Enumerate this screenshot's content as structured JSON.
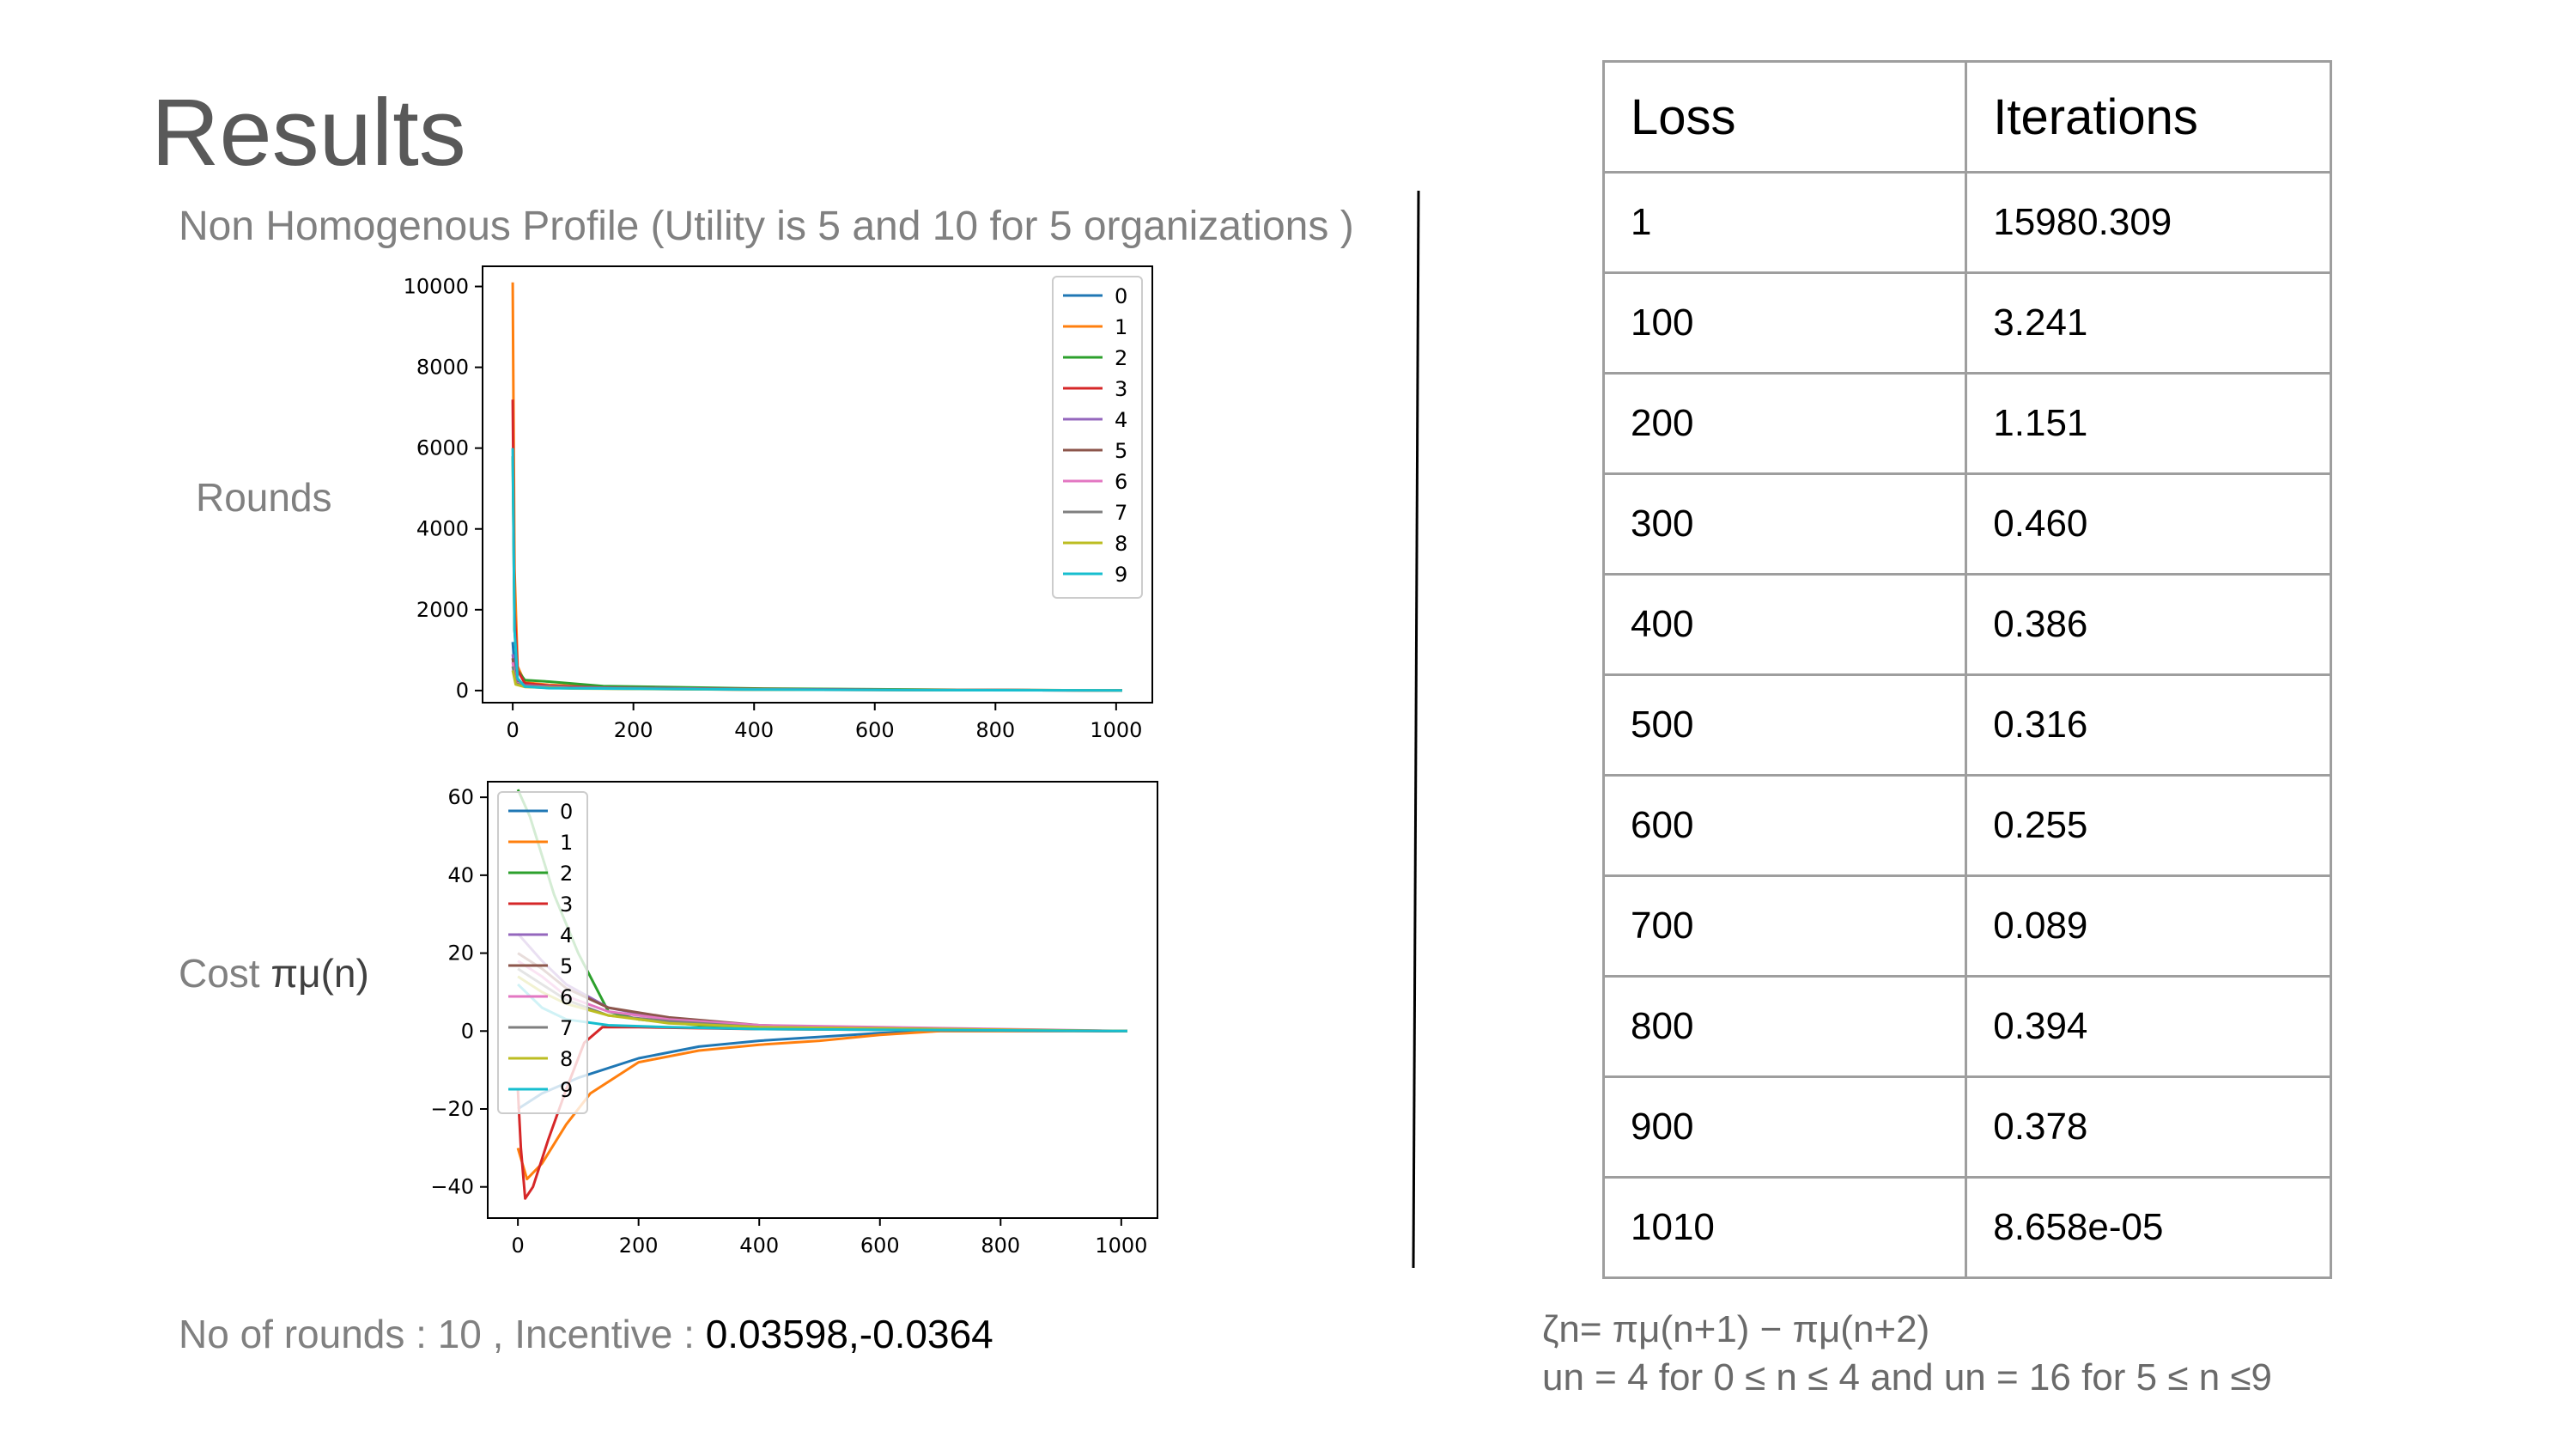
{
  "slide": {
    "title": "Results",
    "subtitle": "Non Homogenous Profile (Utility is 5 and 10 for 5 organizations )",
    "rounds_label": "Rounds",
    "cost_label_prefix": "Cost ",
    "cost_label_symbol": "πμ(n)",
    "footer_prefix": "No of rounds : 10 , Incentive : ",
    "footer_value": "0.03598,-0.0364"
  },
  "table": {
    "headers": [
      "Loss",
      "Iterations"
    ],
    "rows": [
      [
        "1",
        "15980.309"
      ],
      [
        "100",
        "3.241"
      ],
      [
        "200",
        "1.151"
      ],
      [
        "300",
        "0.460"
      ],
      [
        "400",
        "0.386"
      ],
      [
        "500",
        "0.316"
      ],
      [
        "600",
        "0.255"
      ],
      [
        "700",
        "0.089"
      ],
      [
        "800",
        "0.394"
      ],
      [
        "900",
        "0.378"
      ],
      [
        "1010",
        "8.658e-05"
      ]
    ]
  },
  "formula": {
    "line1": "ζn= πμ(n+1) − πμ(n+2)",
    "line2": "un = 4 for 0 ≤ n ≤ 4 and un = 16 for 5 ≤ n ≤9"
  },
  "chart_data": [
    {
      "type": "line",
      "title": "",
      "xlabel": "",
      "ylabel": "",
      "xlim": [
        -50,
        1060
      ],
      "ylim": [
        -300,
        10500
      ],
      "xticks": [
        0,
        200,
        400,
        600,
        800,
        1000
      ],
      "yticks": [
        0,
        2000,
        4000,
        6000,
        8000,
        10000
      ],
      "legend": "top-right",
      "series": [
        {
          "name": "0",
          "color": "#1f77b4",
          "points": [
            [
              0,
              1200
            ],
            [
              4,
              400
            ],
            [
              10,
              200
            ],
            [
              40,
              120
            ],
            [
              150,
              60
            ],
            [
              400,
              30
            ],
            [
              700,
              15
            ],
            [
              1010,
              5
            ]
          ]
        },
        {
          "name": "1",
          "color": "#ff7f0e",
          "points": [
            [
              0,
              10100
            ],
            [
              3,
              3000
            ],
            [
              8,
              600
            ],
            [
              20,
              200
            ],
            [
              60,
              140
            ],
            [
              150,
              80
            ],
            [
              400,
              40
            ],
            [
              700,
              20
            ],
            [
              1010,
              5
            ]
          ]
        },
        {
          "name": "2",
          "color": "#2ca02c",
          "points": [
            [
              0,
              5800
            ],
            [
              3,
              1500
            ],
            [
              8,
              500
            ],
            [
              20,
              260
            ],
            [
              60,
              220
            ],
            [
              150,
              110
            ],
            [
              400,
              50
            ],
            [
              700,
              20
            ],
            [
              1010,
              5
            ]
          ]
        },
        {
          "name": "3",
          "color": "#d62728",
          "points": [
            [
              0,
              7200
            ],
            [
              3,
              2000
            ],
            [
              8,
              500
            ],
            [
              20,
              180
            ],
            [
              60,
              120
            ],
            [
              150,
              70
            ],
            [
              400,
              35
            ],
            [
              700,
              15
            ],
            [
              1010,
              5
            ]
          ]
        },
        {
          "name": "4",
          "color": "#9467bd",
          "points": [
            [
              0,
              900
            ],
            [
              5,
              250
            ],
            [
              20,
              130
            ],
            [
              100,
              80
            ],
            [
              400,
              30
            ],
            [
              1010,
              5
            ]
          ]
        },
        {
          "name": "5",
          "color": "#8c564b",
          "points": [
            [
              0,
              800
            ],
            [
              5,
              220
            ],
            [
              20,
              120
            ],
            [
              100,
              70
            ],
            [
              400,
              25
            ],
            [
              1010,
              5
            ]
          ]
        },
        {
          "name": "6",
          "color": "#e377c2",
          "points": [
            [
              0,
              700
            ],
            [
              5,
              200
            ],
            [
              20,
              110
            ],
            [
              100,
              60
            ],
            [
              400,
              20
            ],
            [
              1010,
              5
            ]
          ]
        },
        {
          "name": "7",
          "color": "#7f7f7f",
          "points": [
            [
              0,
              600
            ],
            [
              5,
              180
            ],
            [
              20,
              100
            ],
            [
              100,
              55
            ],
            [
              400,
              20
            ],
            [
              1010,
              5
            ]
          ]
        },
        {
          "name": "8",
          "color": "#bcbd22",
          "points": [
            [
              0,
              500
            ],
            [
              5,
              150
            ],
            [
              20,
              90
            ],
            [
              100,
              50
            ],
            [
              400,
              20
            ],
            [
              1010,
              5
            ]
          ]
        },
        {
          "name": "9",
          "color": "#17becf",
          "points": [
            [
              0,
              6000
            ],
            [
              3,
              1500
            ],
            [
              8,
              300
            ],
            [
              20,
              100
            ],
            [
              60,
              60
            ],
            [
              150,
              50
            ],
            [
              400,
              25
            ],
            [
              700,
              10
            ],
            [
              1010,
              5
            ]
          ]
        }
      ]
    },
    {
      "type": "line",
      "title": "",
      "xlabel": "",
      "ylabel": "",
      "xlim": [
        -50,
        1060
      ],
      "ylim": [
        -48,
        64
      ],
      "xticks": [
        0,
        200,
        400,
        600,
        800,
        1000
      ],
      "yticks": [
        -40,
        -20,
        0,
        20,
        40,
        60
      ],
      "legend": "top-left",
      "series": [
        {
          "name": "0",
          "color": "#1f77b4",
          "points": [
            [
              0,
              -20
            ],
            [
              40,
              -16
            ],
            [
              100,
              -12
            ],
            [
              200,
              -7
            ],
            [
              300,
              -4
            ],
            [
              400,
              -2.5
            ],
            [
              500,
              -1.5
            ],
            [
              600,
              -0.5
            ],
            [
              700,
              0
            ],
            [
              1010,
              0
            ]
          ]
        },
        {
          "name": "1",
          "color": "#ff7f0e",
          "points": [
            [
              0,
              -30
            ],
            [
              15,
              -38
            ],
            [
              40,
              -34
            ],
            [
              80,
              -24
            ],
            [
              120,
              -16
            ],
            [
              200,
              -8
            ],
            [
              300,
              -5
            ],
            [
              400,
              -3.5
            ],
            [
              500,
              -2.5
            ],
            [
              600,
              -1
            ],
            [
              700,
              0
            ],
            [
              1010,
              0
            ]
          ]
        },
        {
          "name": "2",
          "color": "#2ca02c",
          "points": [
            [
              0,
              62
            ],
            [
              20,
              55
            ],
            [
              60,
              35
            ],
            [
              100,
              20
            ],
            [
              150,
              5
            ],
            [
              200,
              3
            ],
            [
              300,
              1.5
            ],
            [
              400,
              1
            ],
            [
              600,
              0.5
            ],
            [
              1010,
              0
            ]
          ]
        },
        {
          "name": "3",
          "color": "#d62728",
          "points": [
            [
              0,
              -15
            ],
            [
              5,
              -30
            ],
            [
              12,
              -43
            ],
            [
              25,
              -40
            ],
            [
              50,
              -28
            ],
            [
              80,
              -15
            ],
            [
              110,
              -3
            ],
            [
              140,
              1
            ],
            [
              200,
              1
            ],
            [
              400,
              0.5
            ],
            [
              1010,
              0
            ]
          ]
        },
        {
          "name": "4",
          "color": "#9467bd",
          "points": [
            [
              0,
              25
            ],
            [
              40,
              18
            ],
            [
              80,
              12
            ],
            [
              150,
              6
            ],
            [
              250,
              3
            ],
            [
              400,
              1
            ],
            [
              1010,
              0
            ]
          ]
        },
        {
          "name": "5",
          "color": "#8c564b",
          "points": [
            [
              0,
              20
            ],
            [
              40,
              16
            ],
            [
              80,
              11
            ],
            [
              150,
              6
            ],
            [
              250,
              3.5
            ],
            [
              400,
              1.5
            ],
            [
              600,
              0.5
            ],
            [
              1010,
              0
            ]
          ]
        },
        {
          "name": "6",
          "color": "#e377c2",
          "points": [
            [
              0,
              18
            ],
            [
              40,
              14
            ],
            [
              80,
              9
            ],
            [
              150,
              5
            ],
            [
              250,
              3
            ],
            [
              400,
              1.5
            ],
            [
              1010,
              0
            ]
          ]
        },
        {
          "name": "7",
          "color": "#7f7f7f",
          "points": [
            [
              0,
              16
            ],
            [
              40,
              12
            ],
            [
              80,
              8
            ],
            [
              150,
              4
            ],
            [
              250,
              2.5
            ],
            [
              400,
              1
            ],
            [
              1010,
              0
            ]
          ]
        },
        {
          "name": "8",
          "color": "#bcbd22",
          "points": [
            [
              0,
              14
            ],
            [
              40,
              10
            ],
            [
              80,
              7
            ],
            [
              150,
              4
            ],
            [
              250,
              2
            ],
            [
              400,
              1
            ],
            [
              1010,
              0
            ]
          ]
        },
        {
          "name": "9",
          "color": "#17becf",
          "points": [
            [
              0,
              12
            ],
            [
              40,
              6
            ],
            [
              80,
              3
            ],
            [
              150,
              1.5
            ],
            [
              250,
              1
            ],
            [
              400,
              0.5
            ],
            [
              1010,
              0
            ]
          ]
        }
      ]
    }
  ]
}
